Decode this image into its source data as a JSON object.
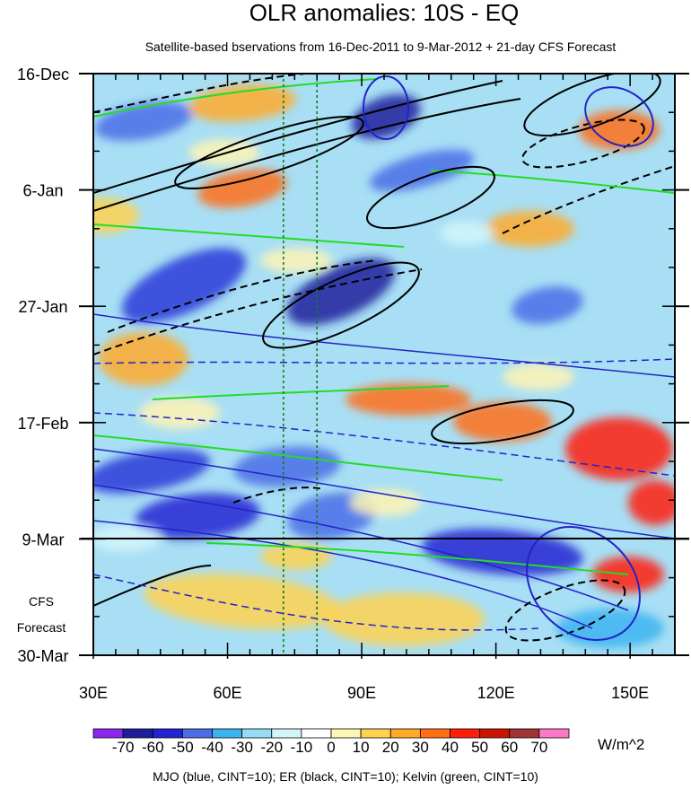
{
  "chart_data": {
    "type": "heatmap",
    "title": "OLR anomalies: 10S - EQ",
    "subtitle": "Satellite-based bservations from 16-Dec-2011 to 9-Mar-2012 + 21-day CFS Forecast",
    "x_ticks": [
      {
        "value": 30,
        "label": "30E"
      },
      {
        "value": 60,
        "label": "60E"
      },
      {
        "value": 90,
        "label": "90E"
      },
      {
        "value": 120,
        "label": "120E"
      },
      {
        "value": 150,
        "label": "150E"
      }
    ],
    "xlim": [
      30,
      160
    ],
    "y_ticks": [
      {
        "day": 0,
        "label": "16-Dec"
      },
      {
        "day": 21,
        "label": "6-Jan"
      },
      {
        "day": 42,
        "label": "27-Jan"
      },
      {
        "day": 63,
        "label": "17-Feb"
      },
      {
        "day": 84,
        "label": "9-Mar"
      },
      {
        "day": 105,
        "label": "30-Mar"
      }
    ],
    "ylim_days": [
      0,
      105
    ],
    "forecast_start_day": 84,
    "forecast_label_line1": "CFS",
    "forecast_label_line2": "Forecast",
    "reference_longitudes": [
      72.5,
      80
    ],
    "colorbar": {
      "labels": [
        "-70",
        "-60",
        "-50",
        "-40",
        "-30",
        "-20",
        "-10",
        "0",
        "10",
        "20",
        "30",
        "40",
        "50",
        "60",
        "70"
      ],
      "colors": [
        "#8c28ee",
        "#1e1e9c",
        "#2323d2",
        "#4a6ee6",
        "#3cb4f0",
        "#96dcf5",
        "#d2f5fa",
        "#ffffff",
        "#fff5b4",
        "#ffd250",
        "#ffaa28",
        "#ff6e14",
        "#ff1e0a",
        "#c81400",
        "#a03232",
        "#ff78c8"
      ],
      "units": "W/m^2"
    },
    "footer": "MJO (blue, CINT=10); ER (black, CINT=10); Kelvin (green, CINT=10)",
    "contour_colors": {
      "mjo": "#2323c8",
      "er": "#000000",
      "kelvin": "#22dd22"
    }
  }
}
